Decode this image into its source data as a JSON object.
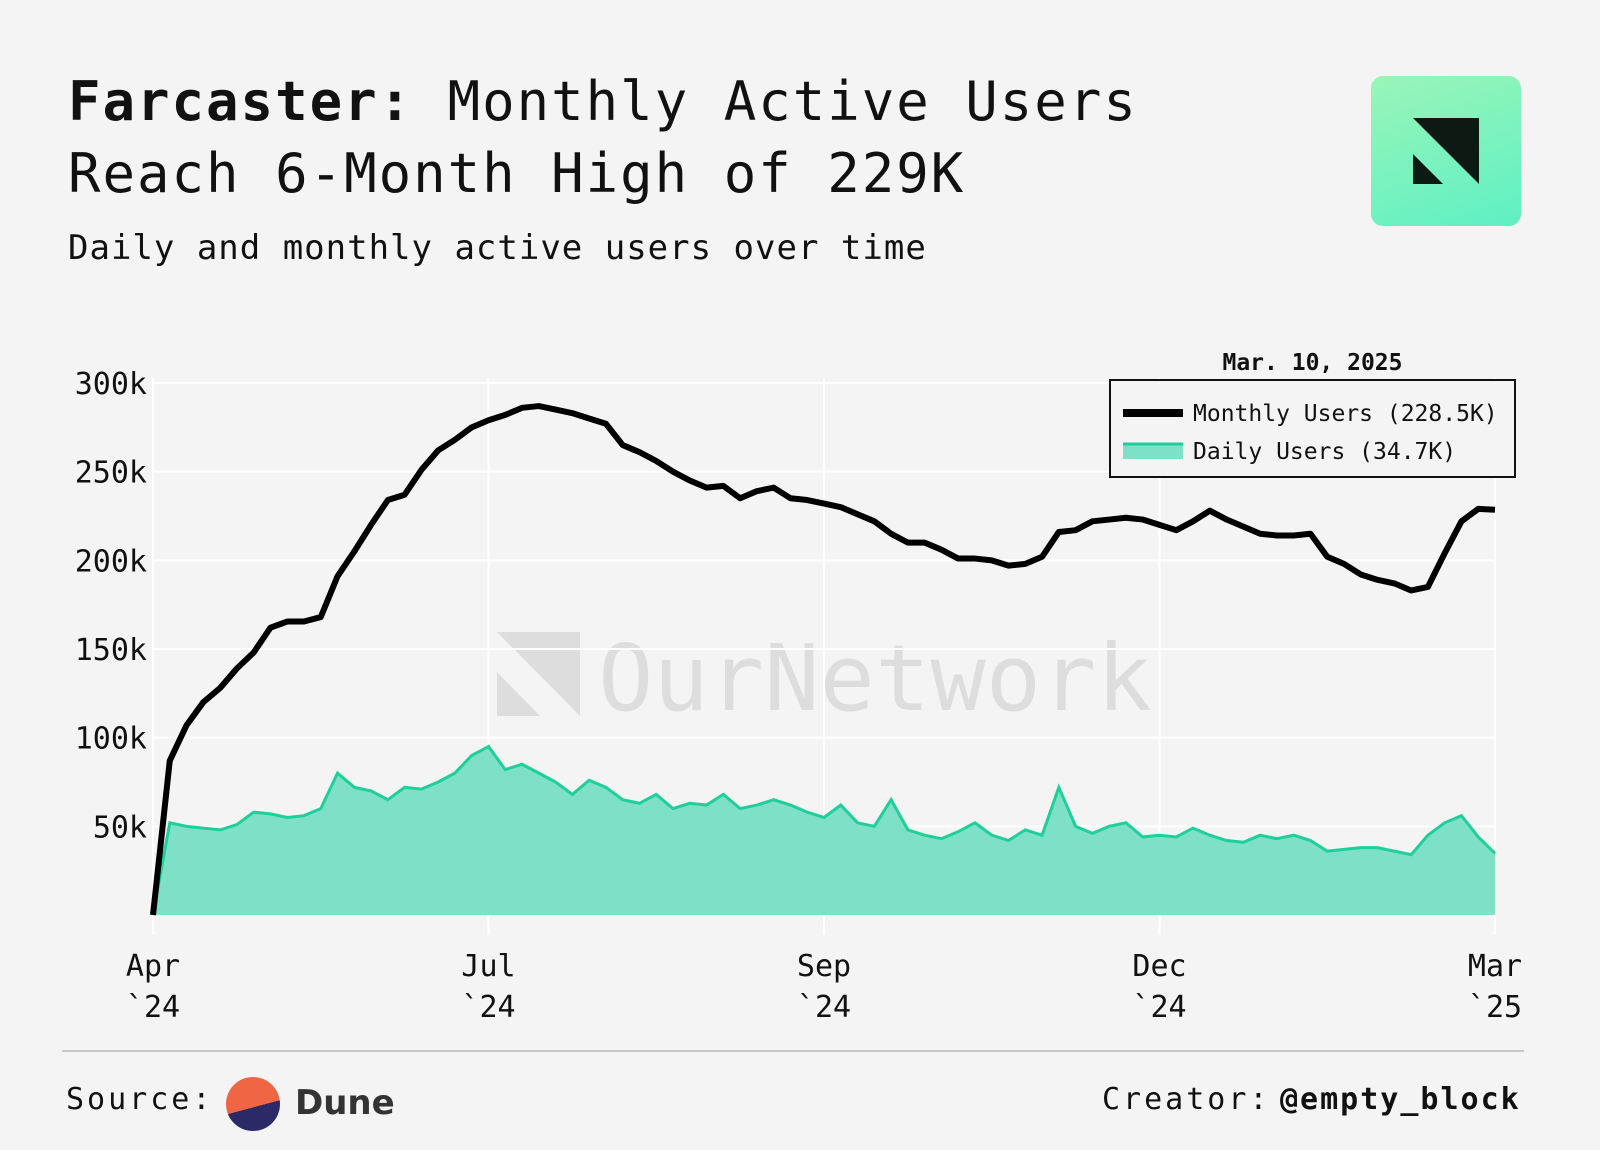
{
  "chart_data": {
    "type": "line",
    "title_prefix": "Farcaster:",
    "title": "Monthly Active Users Reach 6-Month High of 229K",
    "subtitle": "Daily and monthly active users over time",
    "watermark": "OurNetwork",
    "legend_title": "Mar. 10, 2025",
    "legend_position": "top-right",
    "grid": true,
    "xlim": [
      0,
      4
    ],
    "xticks": [
      {
        "value": 0,
        "label": "Apr\n`24"
      },
      {
        "value": 1,
        "label": "Jul\n`24"
      },
      {
        "value": 2,
        "label": "Sep\n`24"
      },
      {
        "value": 3,
        "label": "Dec\n`24"
      },
      {
        "value": 4,
        "label": "Mar\n`25"
      }
    ],
    "ylim": [
      0,
      300000
    ],
    "yticks": [
      {
        "value": 50000,
        "label": "50k"
      },
      {
        "value": 100000,
        "label": "100k"
      },
      {
        "value": 150000,
        "label": "150k"
      },
      {
        "value": 200000,
        "label": "200k"
      },
      {
        "value": 250000,
        "label": "250k"
      },
      {
        "value": 300000,
        "label": "300k"
      }
    ],
    "x": [
      0,
      0.05,
      0.1,
      0.15,
      0.2,
      0.25,
      0.3,
      0.35,
      0.4,
      0.45,
      0.5,
      0.55,
      0.6,
      0.65,
      0.7,
      0.75,
      0.8,
      0.85,
      0.9,
      0.95,
      1,
      1.05,
      1.1,
      1.15,
      1.2,
      1.25,
      1.3,
      1.35,
      1.4,
      1.45,
      1.5,
      1.55,
      1.6,
      1.65,
      1.7,
      1.75,
      1.8,
      1.85,
      1.9,
      1.95,
      2,
      2.05,
      2.1,
      2.15,
      2.2,
      2.25,
      2.3,
      2.35,
      2.4,
      2.45,
      2.5,
      2.55,
      2.6,
      2.65,
      2.7,
      2.75,
      2.8,
      2.85,
      2.9,
      2.95,
      3,
      3.05,
      3.1,
      3.15,
      3.2,
      3.25,
      3.3,
      3.35,
      3.4,
      3.45,
      3.5,
      3.55,
      3.6,
      3.65,
      3.7,
      3.75,
      3.8,
      3.85,
      3.9,
      3.95,
      4
    ],
    "series": [
      {
        "name": "Monthly Users (228.5K)",
        "kind": "line",
        "color": "#000000",
        "values": [
          0,
          87000,
          107000,
          120000,
          128000,
          139000,
          148000,
          162000,
          165500,
          165500,
          168000,
          191000,
          205000,
          220000,
          234000,
          237000,
          251000,
          262000,
          268000,
          275000,
          279000,
          282000,
          286000,
          287000,
          285000,
          283000,
          280000,
          277000,
          265000,
          261000,
          256000,
          250000,
          245000,
          241000,
          242000,
          235000,
          239000,
          241000,
          235000,
          234000,
          232000,
          230000,
          226000,
          222000,
          215000,
          210000,
          210000,
          206000,
          201000,
          201000,
          200000,
          197000,
          198000,
          202000,
          216000,
          217000,
          222000,
          223000,
          224000,
          223000,
          220000,
          217000,
          222000,
          228000,
          223000,
          219000,
          215000,
          214000,
          214000,
          215000,
          202000,
          198000,
          192000,
          189000,
          187000,
          183000,
          185000,
          204000,
          222000,
          229000,
          228500
        ]
      },
      {
        "name": "Daily Users (34.7K)",
        "kind": "area",
        "color": "#1fcf9a",
        "fill": "#7fe0c8",
        "values": [
          0,
          52000,
          50000,
          49000,
          48000,
          51000,
          58000,
          57000,
          55000,
          56000,
          60000,
          80000,
          72000,
          70000,
          65000,
          72000,
          71000,
          75000,
          80000,
          90000,
          95000,
          82000,
          85000,
          80000,
          75000,
          68000,
          76000,
          72000,
          65000,
          63000,
          68000,
          60000,
          63000,
          62000,
          68000,
          60000,
          62000,
          65000,
          62000,
          58000,
          55000,
          62000,
          52000,
          50000,
          65000,
          48000,
          45000,
          43000,
          47000,
          52000,
          45000,
          42000,
          48000,
          45000,
          72000,
          50000,
          46000,
          50000,
          52000,
          44000,
          45000,
          44000,
          49000,
          45000,
          42000,
          41000,
          45000,
          43000,
          45000,
          42000,
          36000,
          37000,
          38000,
          38000,
          36000,
          34000,
          45000,
          52000,
          56000,
          44000,
          34700
        ]
      }
    ],
    "source_label": "Source:",
    "source_name": "Dune",
    "creator_label": "Creator:",
    "creator_name": "@empty_block"
  }
}
